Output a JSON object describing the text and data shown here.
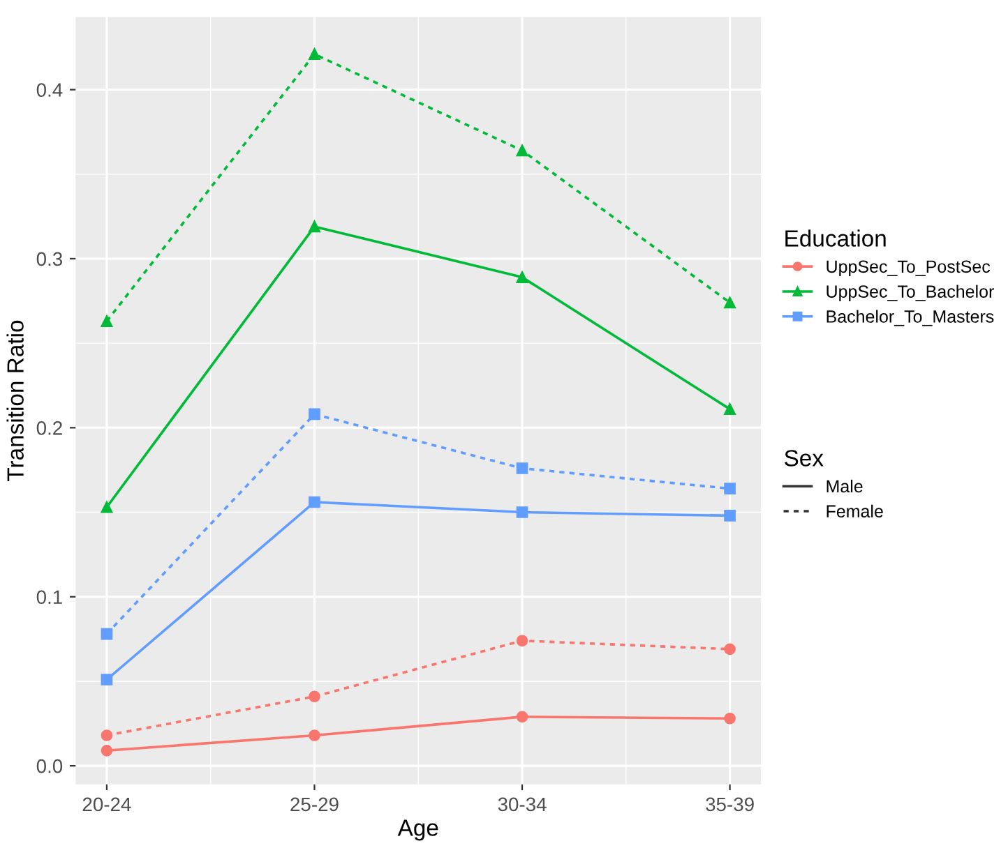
{
  "chart_data": {
    "type": "line",
    "xlabel": "Age",
    "ylabel": "Transition Ratio",
    "legend_title": "Education",
    "annotations": [
      "Sex",
      "Male",
      "Female"
    ],
    "categories": [
      "20-24",
      "25-29",
      "30-34",
      "35-39"
    ],
    "ylim": [
      -0.011,
      0.443
    ],
    "yticks": [
      {
        "value": 0,
        "label": "0.0"
      },
      {
        "value": 0.1,
        "label": "0.1"
      },
      {
        "value": 0.2,
        "label": "0.2"
      },
      {
        "value": 0.3,
        "label": "0.3"
      },
      {
        "value": 0.4,
        "label": "0.4"
      }
    ],
    "grid": true,
    "legend": "right",
    "series": [
      {
        "name": "UppSec_To_PostSec",
        "color": "#f8766d",
        "marker": "circle",
        "line_style": "solid",
        "values": [
          0.009,
          0.018,
          0.029,
          0.028
        ]
      },
      {
        "color": "#f8766d",
        "marker": "circle",
        "line_style": "dotted",
        "values": [
          0.018,
          0.041,
          0.074,
          0.069
        ]
      },
      {
        "name": "UppSec_To_Bachelor",
        "color": "#00ba38",
        "marker": "triangle",
        "line_style": "solid",
        "values": [
          0.153,
          0.319,
          0.289,
          0.211
        ]
      },
      {
        "color": "#00ba38",
        "marker": "triangle",
        "line_style": "dotted",
        "values": [
          0.263,
          0.421,
          0.364,
          0.274
        ]
      },
      {
        "name": "Bachelor_To_Masters",
        "color": "#619cff",
        "marker": "square",
        "line_style": "solid",
        "values": [
          0.051,
          0.156,
          0.15,
          0.148
        ]
      },
      {
        "color": "#619cff",
        "marker": "square",
        "line_style": "dotted",
        "values": [
          0.078,
          0.208,
          0.176,
          0.164
        ]
      }
    ]
  }
}
